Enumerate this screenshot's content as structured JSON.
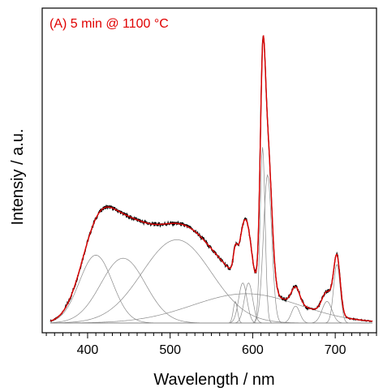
{
  "chart_data": {
    "type": "line",
    "annotation": "(A) 5 min @ 1100 °C",
    "xlabel": "Wavelength / nm",
    "ylabel": "Intensiy / a.u.",
    "xlim": [
      345,
      750
    ],
    "ylim": [
      0,
      1.0
    ],
    "x_ticks": [
      400,
      500,
      600,
      700
    ],
    "y_ticks_shown": false,
    "grid": false,
    "colors": {
      "measured": "#000000",
      "fit": "#e00000",
      "components": "#8a8a8a",
      "annotation": "#e00000"
    },
    "components": [
      {
        "center": 410,
        "width": 20,
        "amplitude": 0.22
      },
      {
        "center": 443,
        "width": 27,
        "amplitude": 0.21
      },
      {
        "center": 508,
        "width": 42,
        "amplitude": 0.27
      },
      {
        "center": 592,
        "width": 65,
        "amplitude": 0.095
      },
      {
        "center": 588,
        "width": 5,
        "amplitude": 0.13
      },
      {
        "center": 595,
        "width": 5,
        "amplitude": 0.13
      },
      {
        "center": 579,
        "width": 2.5,
        "amplitude": 0.07
      },
      {
        "center": 612,
        "width": 3,
        "amplitude": 0.57
      },
      {
        "center": 618,
        "width": 5,
        "amplitude": 0.48
      },
      {
        "center": 652,
        "width": 5,
        "amplitude": 0.055
      },
      {
        "center": 690,
        "width": 6,
        "amplitude": 0.07
      },
      {
        "center": 702,
        "width": 4,
        "amplitude": 0.19
      }
    ],
    "x_range_nm": [
      355,
      745
    ],
    "step_nm": 1
  }
}
